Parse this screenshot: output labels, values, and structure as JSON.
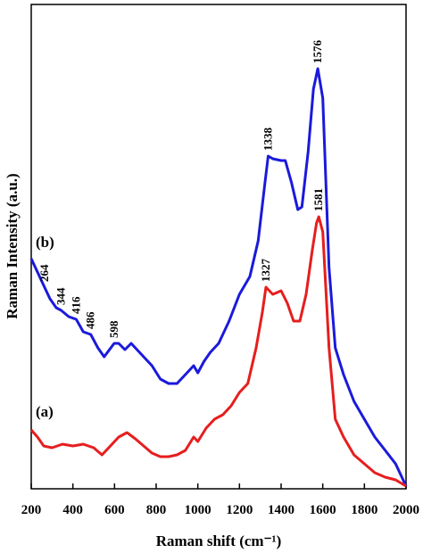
{
  "chart_data": {
    "type": "line",
    "xlabel": "Raman shift (cm⁻¹)",
    "ylabel": "Raman Intensity (a.u.)",
    "xlim": [
      200,
      2000
    ],
    "xticks": [
      200,
      400,
      600,
      800,
      1000,
      1200,
      1400,
      1600,
      1800,
      2000
    ],
    "ylim": [
      0,
      543
    ],
    "series": [
      {
        "name": "(b)",
        "color": "#1a1adb",
        "x": [
          200,
          230,
          264,
          290,
          320,
          344,
          380,
          416,
          450,
          486,
          520,
          550,
          598,
          620,
          650,
          680,
          720,
          780,
          820,
          860,
          900,
          940,
          980,
          1000,
          1030,
          1060,
          1100,
          1150,
          1200,
          1250,
          1290,
          1320,
          1338,
          1360,
          1400,
          1420,
          1450,
          1480,
          1500,
          1530,
          1555,
          1576,
          1600,
          1630,
          1660,
          1700,
          1750,
          1800,
          1850,
          1900,
          1950,
          2000
        ],
        "values": [
          258,
          243,
          226,
          213,
          203,
          200,
          193,
          190,
          176,
          173,
          158,
          148,
          163,
          163,
          156,
          163,
          153,
          138,
          123,
          118,
          118,
          128,
          138,
          130,
          143,
          153,
          163,
          188,
          218,
          238,
          278,
          338,
          373,
          370,
          368,
          368,
          343,
          313,
          316,
          378,
          448,
          471,
          438,
          248,
          158,
          128,
          98,
          78,
          58,
          43,
          28,
          3
        ],
        "peaks": [
          264,
          344,
          416,
          486,
          598,
          1338,
          1576
        ]
      },
      {
        "name": "(a)",
        "color": "#e61e1e",
        "x": [
          200,
          230,
          260,
          300,
          350,
          400,
          450,
          500,
          540,
          580,
          620,
          660,
          700,
          740,
          780,
          820,
          860,
          900,
          940,
          980,
          1000,
          1040,
          1080,
          1120,
          1160,
          1200,
          1240,
          1280,
          1310,
          1327,
          1360,
          1400,
          1430,
          1460,
          1490,
          1520,
          1550,
          1570,
          1581,
          1600,
          1630,
          1660,
          1700,
          1750,
          1800,
          1850,
          1900,
          1950,
          2000
        ],
        "values": [
          66,
          58,
          48,
          46,
          50,
          48,
          50,
          46,
          38,
          48,
          58,
          63,
          56,
          48,
          40,
          36,
          36,
          38,
          43,
          58,
          53,
          68,
          78,
          83,
          93,
          108,
          118,
          158,
          198,
          226,
          218,
          222,
          208,
          188,
          188,
          218,
          268,
          298,
          305,
          288,
          158,
          78,
          58,
          38,
          28,
          18,
          13,
          10,
          3
        ],
        "peaks": [
          1327,
          1581
        ]
      }
    ]
  }
}
